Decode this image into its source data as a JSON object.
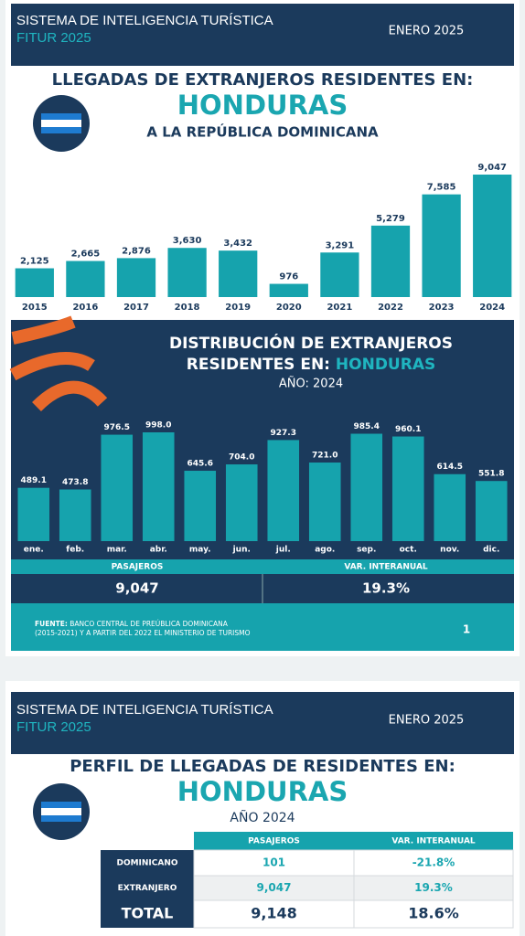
{
  "page1": {
    "header": {
      "title": "SISTEMA DE INTELIGENCIA TURÍSTICA",
      "subtitle": "FITUR 2025",
      "date": "ENERO 2025"
    },
    "title": "LLEGADAS DE EXTRANJEROS RESIDENTES EN:",
    "country": "HONDURAS",
    "subtitle": "A LA REPÚBLICA DOMINICANA",
    "summary": {
      "columns": [
        "PASAJEROS",
        "VAR. INTERANUAL"
      ],
      "values": [
        "9,047",
        "19.3%"
      ]
    },
    "source_label": "FUENTE:",
    "source_line1": "BANCO CENTRAL DE PREÚBLICA DOMINICANA",
    "source_line2": "(2015-2021) Y A PARTIR DEL 2022 EL MINISTERIO DE TURISMO",
    "page_number": "1"
  },
  "chart_data": [
    {
      "type": "bar",
      "color": "#16a3ad",
      "categories": [
        "2015",
        "2016",
        "2017",
        "2018",
        "2019",
        "2020",
        "2021",
        "2022",
        "2023",
        "2024"
      ],
      "values": [
        2125,
        2665,
        2876,
        3630,
        3432,
        976,
        3291,
        5279,
        7585,
        9047
      ],
      "value_labels": [
        "2,125",
        "2,665",
        "2,876",
        "3,630",
        "3,432",
        "976",
        "3,291",
        "5,279",
        "7,585",
        "9,047"
      ]
    },
    {
      "type": "bar",
      "color": "#16a3ad",
      "title_line1": "DISTRIBUCIÓN DE EXTRANJEROS",
      "title_line2": "RESIDENTES EN:",
      "title_highlight": "HONDURAS",
      "subtitle": "AÑO: 2024",
      "categories": [
        "ene.",
        "feb.",
        "mar.",
        "abr.",
        "may.",
        "jun.",
        "jul.",
        "ago.",
        "sep.",
        "oct.",
        "nov.",
        "dic."
      ],
      "values": [
        489.1,
        473.8,
        976.5,
        998.0,
        645.6,
        704.0,
        927.3,
        721.0,
        985.4,
        960.1,
        614.5,
        551.8
      ],
      "value_labels": [
        "489.1",
        "473.8",
        "976.5",
        "998.0",
        "645.6",
        "704.0",
        "927.3",
        "721.0",
        "985.4",
        "960.1",
        "614.5",
        "551.8"
      ]
    }
  ],
  "page2": {
    "header": {
      "title": "SISTEMA DE INTELIGENCIA TURÍSTICA",
      "subtitle": "FITUR 2025",
      "date": "ENERO 2025"
    },
    "title": "PERFIL DE LLEGADAS DE RESIDENTES EN:",
    "country": "HONDURAS",
    "subtitle": "AÑO 2024",
    "table": {
      "columns": [
        "PASAJEROS",
        "VAR. INTERANUAL"
      ],
      "rows": [
        [
          "DOMINICANO",
          "101",
          "-21.8%"
        ],
        [
          "EXTRANJERO",
          "9,047",
          "19.3%"
        ],
        [
          "TOTAL",
          "9,148",
          "18.6%"
        ]
      ]
    }
  }
}
